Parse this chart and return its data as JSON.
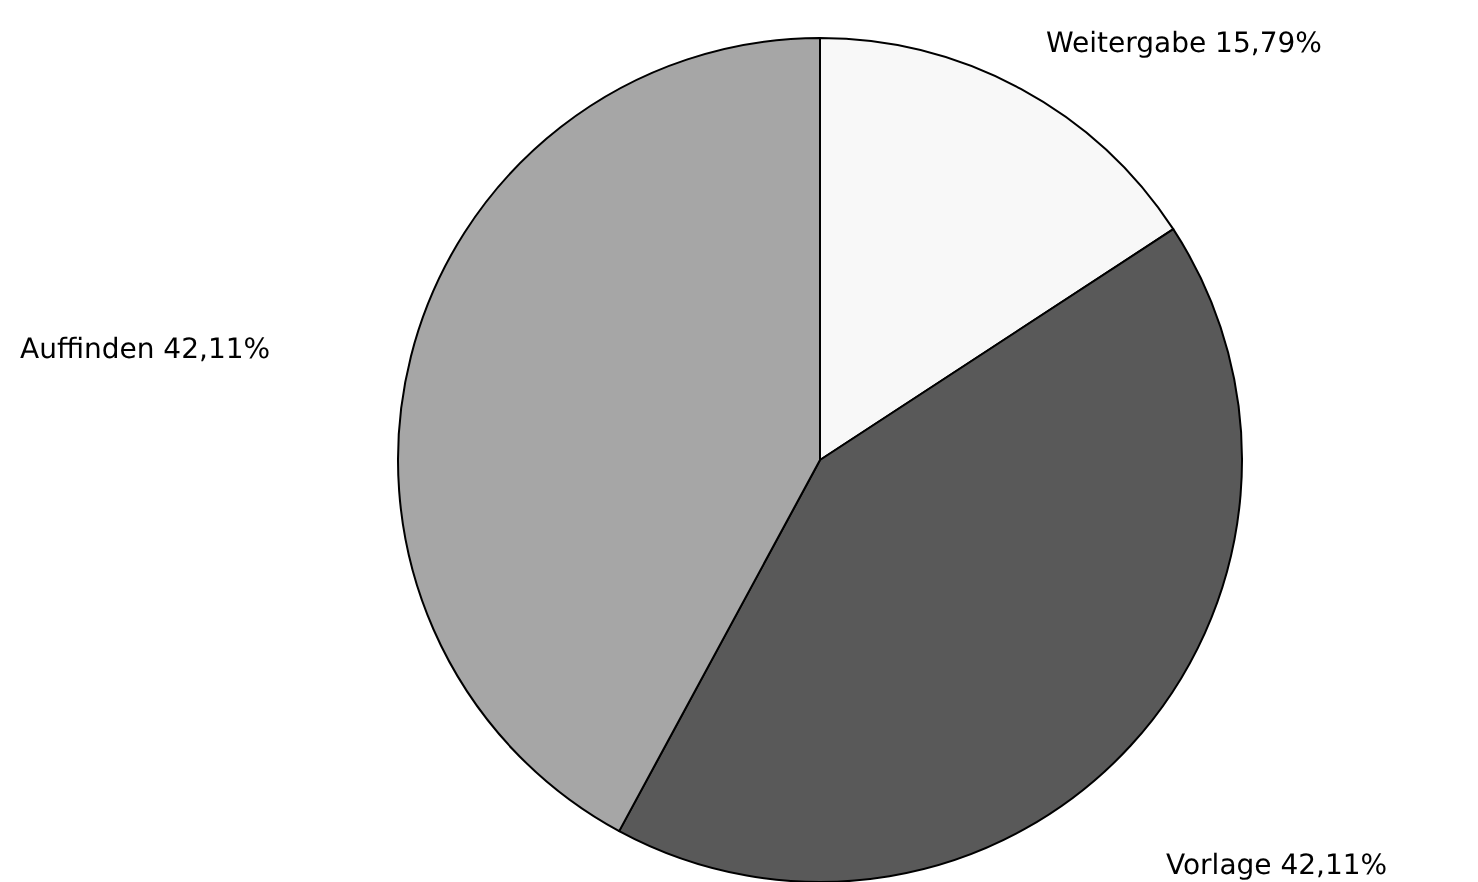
{
  "chart_data": {
    "type": "pie",
    "categories": [
      "Weitergabe",
      "Vorlage",
      "Auffinden"
    ],
    "values": [
      15.79,
      42.11,
      42.11
    ],
    "value_labels": [
      "15,79%",
      "42,11%",
      "42,11%"
    ],
    "colors": [
      "#f8f8f8",
      "#595959",
      "#a6a6a6"
    ],
    "legend": false
  }
}
